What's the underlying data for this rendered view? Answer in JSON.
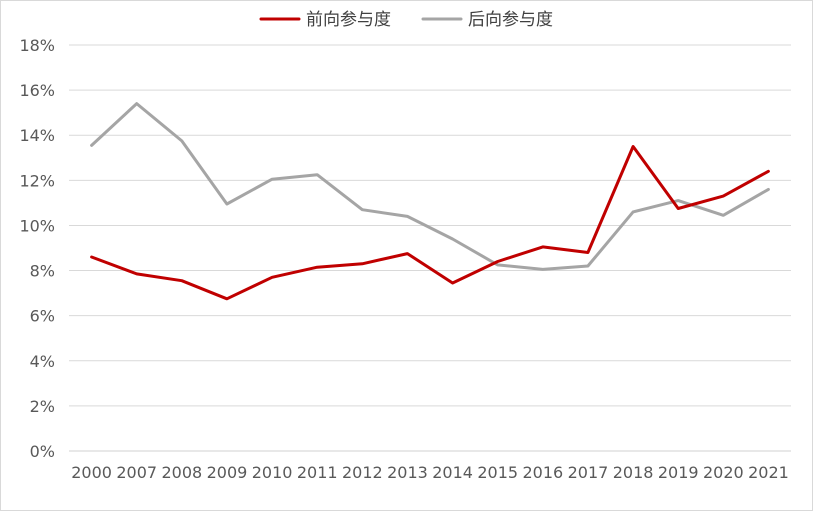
{
  "chart_data": {
    "type": "line",
    "title": "",
    "xlabel": "",
    "ylabel": "",
    "categories": [
      "2000",
      "2007",
      "2008",
      "2009",
      "2010",
      "2011",
      "2012",
      "2013",
      "2014",
      "2015",
      "2016",
      "2017",
      "2018",
      "2019",
      "2020",
      "2021"
    ],
    "ylim": [
      0,
      18
    ],
    "y_ticks": [
      0,
      2,
      4,
      6,
      8,
      10,
      12,
      14,
      16,
      18
    ],
    "y_tick_labels": [
      "0%",
      "2%",
      "4%",
      "6%",
      "8%",
      "10%",
      "12%",
      "14%",
      "16%",
      "18%"
    ],
    "grid": "horizontal-major",
    "legend_position": "top-center",
    "series": [
      {
        "name": "前向参与度",
        "color": "#c00000",
        "values": [
          8.6,
          7.85,
          7.55,
          6.75,
          7.7,
          8.15,
          8.3,
          8.75,
          7.45,
          8.4,
          9.05,
          8.8,
          13.5,
          10.75,
          11.3,
          12.4
        ]
      },
      {
        "name": "后向参与度",
        "color": "#a5a5a5",
        "values": [
          13.55,
          15.4,
          13.75,
          10.95,
          12.05,
          12.25,
          10.7,
          10.4,
          9.4,
          8.25,
          8.05,
          8.2,
          10.6,
          11.1,
          10.45,
          11.6
        ]
      }
    ]
  }
}
